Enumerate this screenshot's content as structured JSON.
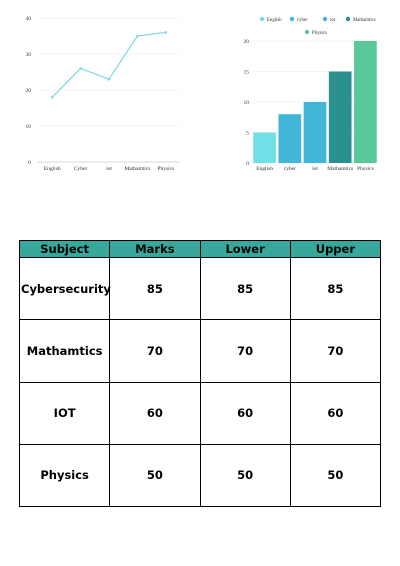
{
  "colors": {
    "line": "#7fd8dd",
    "header_bg": "#38a89d"
  },
  "chart_data": [
    {
      "type": "line",
      "categories": [
        "English",
        "Cyber",
        "iot",
        "Mathamtics",
        "Physics"
      ],
      "series": [
        {
          "values": [
            18,
            26,
            23,
            35,
            36
          ],
          "color": "#7fd8dd"
        }
      ],
      "ylim": [
        0,
        40
      ],
      "yticks": [
        0,
        10,
        20,
        30,
        40
      ],
      "grid": true
    },
    {
      "type": "bar",
      "categories": [
        "English",
        "cyber",
        "iot",
        "Mathamtics",
        "Physics"
      ],
      "values": [
        5,
        8,
        10,
        15,
        20
      ],
      "colors": [
        "#6ee0e6",
        "#41b6d8",
        "#41b6d8",
        "#2b9090",
        "#59c99a"
      ],
      "legend": [
        "English",
        "cyber",
        "iot",
        "Mathamtics",
        "Physics"
      ],
      "legend_position": "top",
      "ylim": [
        0,
        20
      ],
      "yticks": [
        0,
        5,
        10,
        15,
        20
      ],
      "grid": true
    }
  ],
  "table": {
    "headers": [
      "Subject",
      "Marks",
      "Lower",
      "Upper"
    ],
    "rows": [
      [
        "Cybersecurity",
        "85",
        "85",
        "85"
      ],
      [
        "Mathamtics",
        "70",
        "70",
        "70"
      ],
      [
        "IOT",
        "60",
        "60",
        "60"
      ],
      [
        "Physics",
        "50",
        "50",
        "50"
      ]
    ]
  }
}
